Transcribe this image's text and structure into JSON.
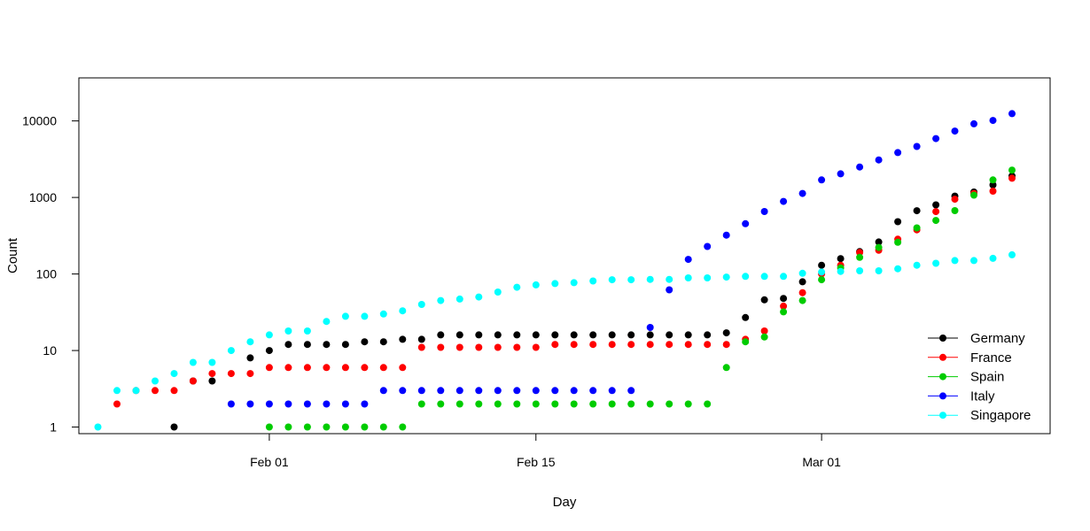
{
  "chart_data": {
    "type": "scatter",
    "title": "",
    "xlabel": "Day",
    "ylabel": "Count",
    "yscale": "log",
    "xlim": [
      "2020-01-22",
      "2020-03-13"
    ],
    "ylim": [
      1,
      30000
    ],
    "x_ticks": [
      {
        "date": "2020-02-01",
        "label": "Feb 01"
      },
      {
        "date": "2020-02-15",
        "label": "Feb 15"
      },
      {
        "date": "2020-03-01",
        "label": "Mar 01"
      }
    ],
    "y_ticks": [
      {
        "value": 1,
        "label": "1"
      },
      {
        "value": 10,
        "label": "10"
      },
      {
        "value": 100,
        "label": "100"
      },
      {
        "value": 1000,
        "label": "1000"
      },
      {
        "value": 10000,
        "label": "10000"
      }
    ],
    "legend_position": "bottom-right",
    "grid": false,
    "series": [
      {
        "name": "Germany",
        "color": "#000000",
        "points": [
          [
            "2020-01-27",
            1
          ],
          [
            "2020-01-28",
            4
          ],
          [
            "2020-01-29",
            4
          ],
          [
            "2020-01-31",
            8
          ],
          [
            "2020-02-01",
            10
          ],
          [
            "2020-02-02",
            12
          ],
          [
            "2020-02-03",
            12
          ],
          [
            "2020-02-04",
            12
          ],
          [
            "2020-02-05",
            12
          ],
          [
            "2020-02-06",
            13
          ],
          [
            "2020-02-07",
            13
          ],
          [
            "2020-02-08",
            14
          ],
          [
            "2020-02-09",
            14
          ],
          [
            "2020-02-10",
            16
          ],
          [
            "2020-02-11",
            16
          ],
          [
            "2020-02-12",
            16
          ],
          [
            "2020-02-13",
            16
          ],
          [
            "2020-02-14",
            16
          ],
          [
            "2020-02-15",
            16
          ],
          [
            "2020-02-16",
            16
          ],
          [
            "2020-02-17",
            16
          ],
          [
            "2020-02-18",
            16
          ],
          [
            "2020-02-19",
            16
          ],
          [
            "2020-02-20",
            16
          ],
          [
            "2020-02-21",
            16
          ],
          [
            "2020-02-22",
            16
          ],
          [
            "2020-02-23",
            16
          ],
          [
            "2020-02-24",
            16
          ],
          [
            "2020-02-25",
            17
          ],
          [
            "2020-02-26",
            27
          ],
          [
            "2020-02-27",
            46
          ],
          [
            "2020-02-28",
            48
          ],
          [
            "2020-02-29",
            79
          ],
          [
            "2020-03-01",
            130
          ],
          [
            "2020-03-02",
            159
          ],
          [
            "2020-03-03",
            196
          ],
          [
            "2020-03-04",
            262
          ],
          [
            "2020-03-05",
            482
          ],
          [
            "2020-03-06",
            670
          ],
          [
            "2020-03-07",
            799
          ],
          [
            "2020-03-08",
            1040
          ],
          [
            "2020-03-09",
            1176
          ],
          [
            "2020-03-10",
            1457
          ],
          [
            "2020-03-11",
            1908
          ]
        ]
      },
      {
        "name": "France",
        "color": "#ff0000",
        "points": [
          [
            "2020-01-24",
            2
          ],
          [
            "2020-01-25",
            3
          ],
          [
            "2020-01-26",
            3
          ],
          [
            "2020-01-27",
            3
          ],
          [
            "2020-01-28",
            4
          ],
          [
            "2020-01-29",
            5
          ],
          [
            "2020-01-30",
            5
          ],
          [
            "2020-01-31",
            5
          ],
          [
            "2020-02-01",
            6
          ],
          [
            "2020-02-02",
            6
          ],
          [
            "2020-02-03",
            6
          ],
          [
            "2020-02-04",
            6
          ],
          [
            "2020-02-05",
            6
          ],
          [
            "2020-02-06",
            6
          ],
          [
            "2020-02-07",
            6
          ],
          [
            "2020-02-08",
            6
          ],
          [
            "2020-02-09",
            11
          ],
          [
            "2020-02-10",
            11
          ],
          [
            "2020-02-11",
            11
          ],
          [
            "2020-02-12",
            11
          ],
          [
            "2020-02-13",
            11
          ],
          [
            "2020-02-14",
            11
          ],
          [
            "2020-02-15",
            11
          ],
          [
            "2020-02-16",
            12
          ],
          [
            "2020-02-17",
            12
          ],
          [
            "2020-02-18",
            12
          ],
          [
            "2020-02-19",
            12
          ],
          [
            "2020-02-20",
            12
          ],
          [
            "2020-02-21",
            12
          ],
          [
            "2020-02-22",
            12
          ],
          [
            "2020-02-23",
            12
          ],
          [
            "2020-02-24",
            12
          ],
          [
            "2020-02-25",
            12
          ],
          [
            "2020-02-26",
            14
          ],
          [
            "2020-02-27",
            18
          ],
          [
            "2020-02-28",
            38
          ],
          [
            "2020-02-29",
            57
          ],
          [
            "2020-03-01",
            100
          ],
          [
            "2020-03-02",
            130
          ],
          [
            "2020-03-03",
            191
          ],
          [
            "2020-03-04",
            204
          ],
          [
            "2020-03-05",
            285
          ],
          [
            "2020-03-06",
            377
          ],
          [
            "2020-03-07",
            653
          ],
          [
            "2020-03-08",
            949
          ],
          [
            "2020-03-09",
            1126
          ],
          [
            "2020-03-10",
            1209
          ],
          [
            "2020-03-11",
            1784
          ]
        ]
      },
      {
        "name": "Spain",
        "color": "#00cc00",
        "points": [
          [
            "2020-02-01",
            1
          ],
          [
            "2020-02-02",
            1
          ],
          [
            "2020-02-03",
            1
          ],
          [
            "2020-02-04",
            1
          ],
          [
            "2020-02-05",
            1
          ],
          [
            "2020-02-06",
            1
          ],
          [
            "2020-02-07",
            1
          ],
          [
            "2020-02-08",
            1
          ],
          [
            "2020-02-09",
            2
          ],
          [
            "2020-02-10",
            2
          ],
          [
            "2020-02-11",
            2
          ],
          [
            "2020-02-12",
            2
          ],
          [
            "2020-02-13",
            2
          ],
          [
            "2020-02-14",
            2
          ],
          [
            "2020-02-15",
            2
          ],
          [
            "2020-02-16",
            2
          ],
          [
            "2020-02-17",
            2
          ],
          [
            "2020-02-18",
            2
          ],
          [
            "2020-02-19",
            2
          ],
          [
            "2020-02-20",
            2
          ],
          [
            "2020-02-21",
            2
          ],
          [
            "2020-02-22",
            2
          ],
          [
            "2020-02-23",
            2
          ],
          [
            "2020-02-24",
            2
          ],
          [
            "2020-02-25",
            6
          ],
          [
            "2020-02-26",
            13
          ],
          [
            "2020-02-27",
            15
          ],
          [
            "2020-02-28",
            32
          ],
          [
            "2020-02-29",
            45
          ],
          [
            "2020-03-01",
            84
          ],
          [
            "2020-03-02",
            120
          ],
          [
            "2020-03-03",
            165
          ],
          [
            "2020-03-04",
            222
          ],
          [
            "2020-03-05",
            259
          ],
          [
            "2020-03-06",
            400
          ],
          [
            "2020-03-07",
            500
          ],
          [
            "2020-03-08",
            673
          ],
          [
            "2020-03-09",
            1073
          ],
          [
            "2020-03-10",
            1695
          ],
          [
            "2020-03-11",
            2277
          ]
        ]
      },
      {
        "name": "Italy",
        "color": "#0000ff",
        "points": [
          [
            "2020-01-30",
            2
          ],
          [
            "2020-01-31",
            2
          ],
          [
            "2020-02-01",
            2
          ],
          [
            "2020-02-02",
            2
          ],
          [
            "2020-02-03",
            2
          ],
          [
            "2020-02-04",
            2
          ],
          [
            "2020-02-05",
            2
          ],
          [
            "2020-02-06",
            2
          ],
          [
            "2020-02-07",
            3
          ],
          [
            "2020-02-08",
            3
          ],
          [
            "2020-02-09",
            3
          ],
          [
            "2020-02-10",
            3
          ],
          [
            "2020-02-11",
            3
          ],
          [
            "2020-02-12",
            3
          ],
          [
            "2020-02-13",
            3
          ],
          [
            "2020-02-14",
            3
          ],
          [
            "2020-02-15",
            3
          ],
          [
            "2020-02-16",
            3
          ],
          [
            "2020-02-17",
            3
          ],
          [
            "2020-02-18",
            3
          ],
          [
            "2020-02-19",
            3
          ],
          [
            "2020-02-20",
            3
          ],
          [
            "2020-02-21",
            20
          ],
          [
            "2020-02-22",
            62
          ],
          [
            "2020-02-23",
            155
          ],
          [
            "2020-02-24",
            229
          ],
          [
            "2020-02-25",
            322
          ],
          [
            "2020-02-26",
            453
          ],
          [
            "2020-02-27",
            655
          ],
          [
            "2020-02-28",
            888
          ],
          [
            "2020-02-29",
            1128
          ],
          [
            "2020-03-01",
            1694
          ],
          [
            "2020-03-02",
            2036
          ],
          [
            "2020-03-03",
            2502
          ],
          [
            "2020-03-04",
            3089
          ],
          [
            "2020-03-05",
            3858
          ],
          [
            "2020-03-06",
            4636
          ],
          [
            "2020-03-07",
            5883
          ],
          [
            "2020-03-08",
            7375
          ],
          [
            "2020-03-09",
            9172
          ],
          [
            "2020-03-10",
            10149
          ],
          [
            "2020-03-11",
            12462
          ]
        ]
      },
      {
        "name": "Singapore",
        "color": "#00ffff",
        "points": [
          [
            "2020-01-23",
            1
          ],
          [
            "2020-01-24",
            3
          ],
          [
            "2020-01-25",
            3
          ],
          [
            "2020-01-26",
            4
          ],
          [
            "2020-01-27",
            5
          ],
          [
            "2020-01-28",
            7
          ],
          [
            "2020-01-29",
            7
          ],
          [
            "2020-01-30",
            10
          ],
          [
            "2020-01-31",
            13
          ],
          [
            "2020-02-01",
            16
          ],
          [
            "2020-02-02",
            18
          ],
          [
            "2020-02-03",
            18
          ],
          [
            "2020-02-04",
            24
          ],
          [
            "2020-02-05",
            28
          ],
          [
            "2020-02-06",
            28
          ],
          [
            "2020-02-07",
            30
          ],
          [
            "2020-02-08",
            33
          ],
          [
            "2020-02-09",
            40
          ],
          [
            "2020-02-10",
            45
          ],
          [
            "2020-02-11",
            47
          ],
          [
            "2020-02-12",
            50
          ],
          [
            "2020-02-13",
            58
          ],
          [
            "2020-02-14",
            67
          ],
          [
            "2020-02-15",
            72
          ],
          [
            "2020-02-16",
            75
          ],
          [
            "2020-02-17",
            77
          ],
          [
            "2020-02-18",
            81
          ],
          [
            "2020-02-19",
            84
          ],
          [
            "2020-02-20",
            84
          ],
          [
            "2020-02-21",
            85
          ],
          [
            "2020-02-22",
            85
          ],
          [
            "2020-02-23",
            89
          ],
          [
            "2020-02-24",
            89
          ],
          [
            "2020-02-25",
            91
          ],
          [
            "2020-02-26",
            93
          ],
          [
            "2020-02-27",
            93
          ],
          [
            "2020-02-28",
            93
          ],
          [
            "2020-02-29",
            102
          ],
          [
            "2020-03-01",
            106
          ],
          [
            "2020-03-02",
            108
          ],
          [
            "2020-03-03",
            110
          ],
          [
            "2020-03-04",
            110
          ],
          [
            "2020-03-05",
            117
          ],
          [
            "2020-03-06",
            130
          ],
          [
            "2020-03-07",
            138
          ],
          [
            "2020-03-08",
            150
          ],
          [
            "2020-03-09",
            150
          ],
          [
            "2020-03-10",
            160
          ],
          [
            "2020-03-11",
            178
          ]
        ]
      }
    ]
  }
}
